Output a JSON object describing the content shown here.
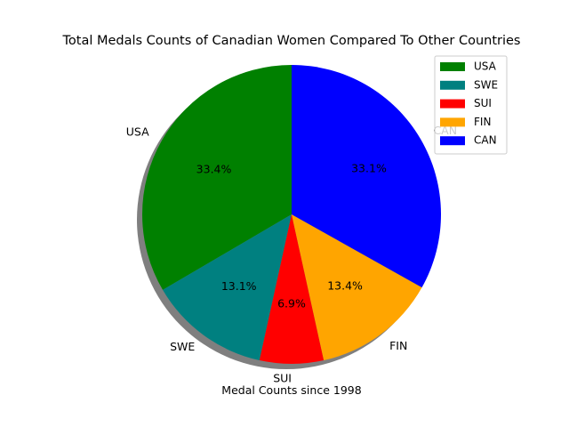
{
  "chart_data": {
    "type": "pie",
    "title": "Total Medals Counts of Canadian Women Compared To Other Countries",
    "xlabel": "Medal Counts since 1998",
    "categories": [
      "USA",
      "SWE",
      "SUI",
      "FIN",
      "CAN"
    ],
    "values": [
      33.4,
      13.1,
      6.9,
      13.4,
      33.1
    ],
    "percent_labels": [
      "33.4%",
      "13.1%",
      "6.9%",
      "13.4%",
      "33.1%"
    ],
    "colors": [
      "#008000",
      "#008080",
      "#ff0000",
      "#ffa500",
      "#0000ff"
    ],
    "start_angle_deg": 90,
    "direction": "counterclockwise",
    "shadow": true,
    "legend": {
      "placement": "top-right",
      "entries": [
        "USA",
        "SWE",
        "SUI",
        "FIN",
        "CAN"
      ]
    }
  }
}
